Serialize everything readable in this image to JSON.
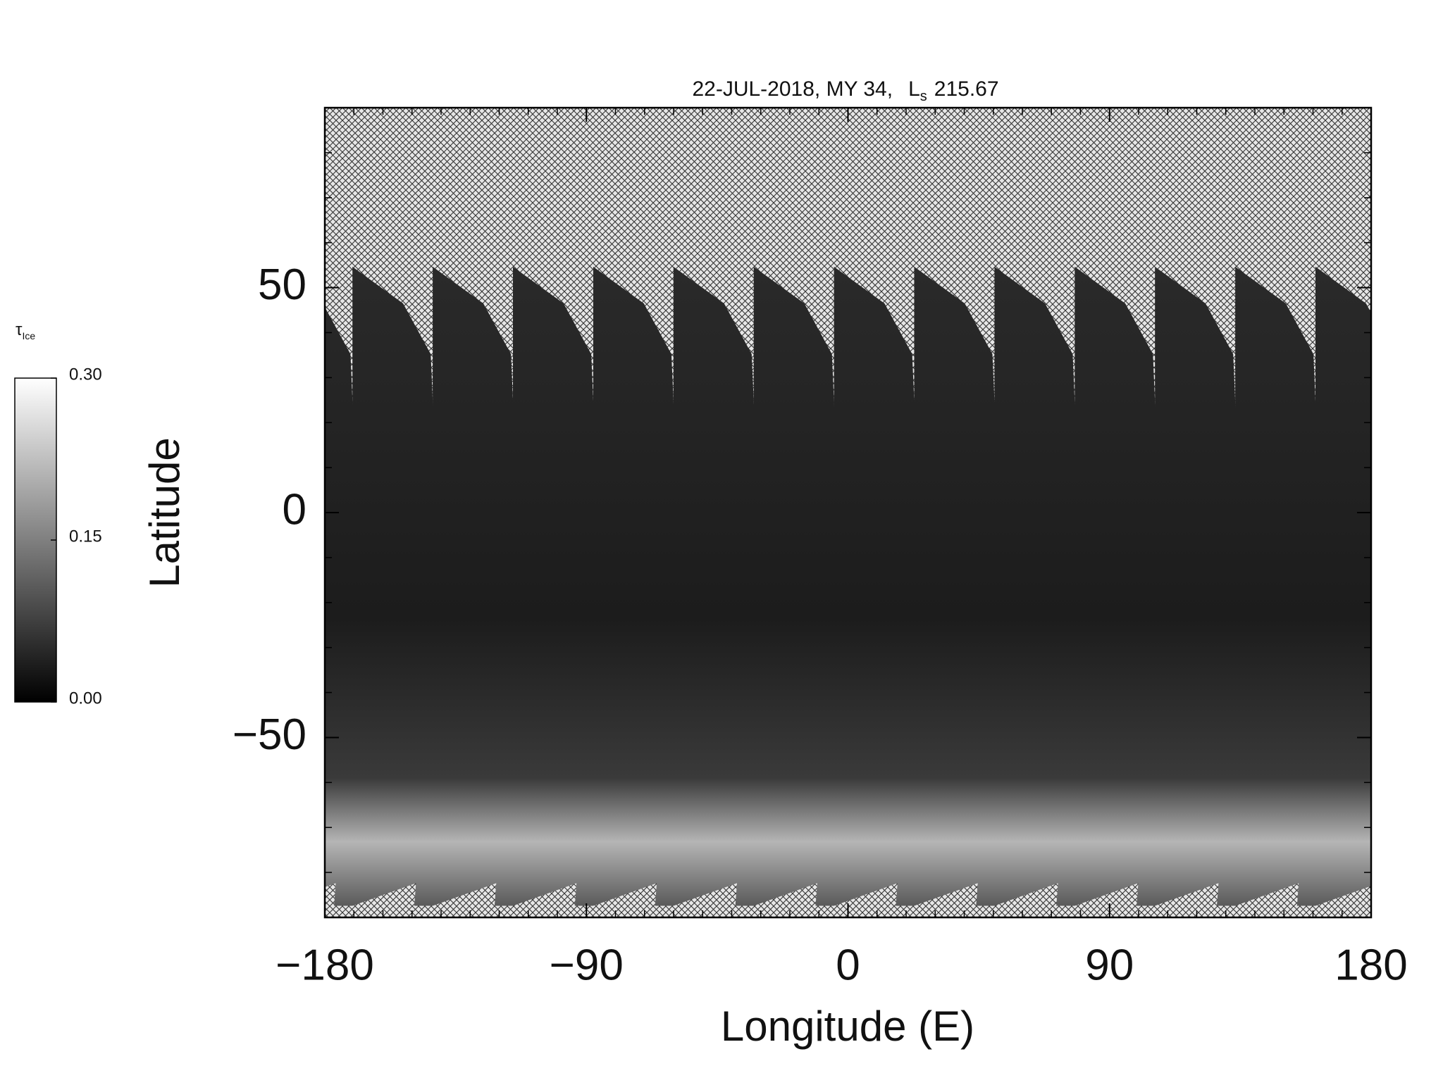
{
  "chart_data": {
    "type": "map",
    "title": {
      "main": "22-JUL-2018, MY 34,",
      "ls": "L",
      "ls_sub": "s",
      "ls_value": "215.67"
    },
    "x_label": "Longitude (E)",
    "y_label": "Latitude",
    "xlim": [
      -180,
      180
    ],
    "ylim": [
      -90,
      90
    ],
    "xticks": [
      {
        "value": -180,
        "label": "−180"
      },
      {
        "value": -90,
        "label": "−90"
      },
      0,
      90,
      180
    ],
    "yticks": [
      {
        "value": -50,
        "label": "−50"
      },
      0,
      50
    ],
    "xminorticks": [
      -170,
      -160,
      -150,
      -140,
      -130,
      -120,
      -110,
      -100,
      -80,
      -70,
      -60,
      -50,
      -40,
      -30,
      -20,
      -10,
      10,
      20,
      30,
      40,
      50,
      60,
      70,
      80,
      100,
      110,
      120,
      130,
      140,
      150,
      160,
      170
    ],
    "yminorticks": [
      -80,
      -70,
      -60,
      -40,
      -30,
      -20,
      -10,
      10,
      20,
      30,
      40,
      60,
      70,
      80
    ],
    "colorbar": {
      "label": "τ",
      "label_sub": "Ice",
      "range": [
        0,
        0.3
      ],
      "ticks": [
        {
          "value": 0,
          "label": "0.00"
        },
        {
          "value": 0.15,
          "label": "0.15"
        },
        {
          "value": 0.3,
          "label": "0.30"
        }
      ]
    }
  }
}
